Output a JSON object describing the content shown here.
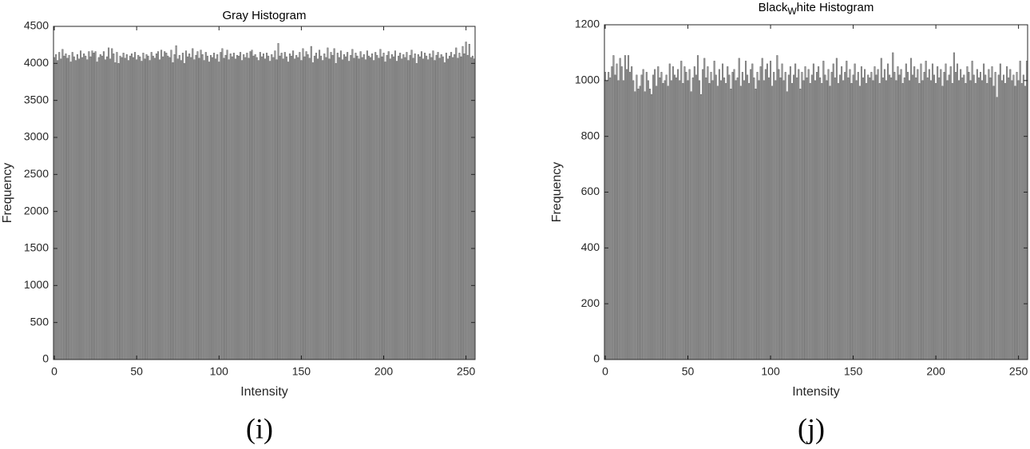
{
  "chart_data": [
    {
      "type": "bar",
      "title": "Gray Histogram",
      "xlabel": "Intensity",
      "ylabel": "Frequency",
      "caption": "(i)",
      "color": "#999999",
      "xlim": [
        -0.5,
        255.5
      ],
      "xticks": [
        0,
        50,
        100,
        150,
        200,
        250
      ],
      "ylim": [
        0,
        4500
      ],
      "yticks": [
        0,
        500,
        1000,
        1500,
        2000,
        2500,
        3000,
        3500,
        4000,
        4500
      ],
      "x": [
        0,
        1,
        2,
        3,
        4,
        5,
        6,
        7,
        8,
        9,
        10,
        11,
        12,
        13,
        14,
        15,
        16,
        17,
        18,
        19,
        20,
        21,
        22,
        23,
        24,
        25,
        26,
        27,
        28,
        29,
        30,
        31,
        32,
        33,
        34,
        35,
        36,
        37,
        38,
        39,
        40,
        41,
        42,
        43,
        44,
        45,
        46,
        47,
        48,
        49,
        50,
        51,
        52,
        53,
        54,
        55,
        56,
        57,
        58,
        59,
        60,
        61,
        62,
        63,
        64,
        65,
        66,
        67,
        68,
        69,
        70,
        71,
        72,
        73,
        74,
        75,
        76,
        77,
        78,
        79,
        80,
        81,
        82,
        83,
        84,
        85,
        86,
        87,
        88,
        89,
        90,
        91,
        92,
        93,
        94,
        95,
        96,
        97,
        98,
        99,
        100,
        101,
        102,
        103,
        104,
        105,
        106,
        107,
        108,
        109,
        110,
        111,
        112,
        113,
        114,
        115,
        116,
        117,
        118,
        119,
        120,
        121,
        122,
        123,
        124,
        125,
        126,
        127,
        128,
        129,
        130,
        131,
        132,
        133,
        134,
        135,
        136,
        137,
        138,
        139,
        140,
        141,
        142,
        143,
        144,
        145,
        146,
        147,
        148,
        149,
        150,
        151,
        152,
        153,
        154,
        155,
        156,
        157,
        158,
        159,
        160,
        161,
        162,
        163,
        164,
        165,
        166,
        167,
        168,
        169,
        170,
        171,
        172,
        173,
        174,
        175,
        176,
        177,
        178,
        179,
        180,
        181,
        182,
        183,
        184,
        185,
        186,
        187,
        188,
        189,
        190,
        191,
        192,
        193,
        194,
        195,
        196,
        197,
        198,
        199,
        200,
        201,
        202,
        203,
        204,
        205,
        206,
        207,
        208,
        209,
        210,
        211,
        212,
        213,
        214,
        215,
        216,
        217,
        218,
        219,
        220,
        221,
        222,
        223,
        224,
        225,
        226,
        227,
        228,
        229,
        230,
        231,
        232,
        233,
        234,
        235,
        236,
        237,
        238,
        239,
        240,
        241,
        242,
        243,
        244,
        245,
        246,
        247,
        248,
        249,
        250,
        251,
        252,
        253,
        254,
        255
      ],
      "values": [
        4080,
        4120,
        4040,
        4150,
        4060,
        4190,
        4100,
        4130,
        4070,
        4110,
        4020,
        4150,
        4090,
        4040,
        4120,
        4060,
        4170,
        4080,
        4130,
        4100,
        4050,
        4160,
        4090,
        4170,
        4140,
        4160,
        4020,
        4080,
        4120,
        4100,
        4160,
        4050,
        4090,
        4210,
        4060,
        4200,
        4130,
        4010,
        4150,
        4000,
        4100,
        4080,
        4140,
        4070,
        4120,
        4040,
        4100,
        4130,
        4080,
        4150,
        4050,
        4110,
        4090,
        4030,
        4140,
        4060,
        4120,
        4100,
        4040,
        4150,
        4100,
        4070,
        4130,
        4160,
        4050,
        4180,
        4090,
        4160,
        4140,
        4100,
        4080,
        4180,
        4010,
        4120,
        4240,
        4060,
        4110,
        4040,
        4140,
        4000,
        4170,
        4090,
        4130,
        4080,
        4200,
        4050,
        4110,
        4160,
        4070,
        4180,
        4120,
        4040,
        4150,
        4100,
        4020,
        4110,
        4080,
        4140,
        4060,
        4120,
        4020,
        4150,
        4200,
        4070,
        4110,
        4180,
        4050,
        4130,
        4090,
        4140,
        4060,
        4110,
        4100,
        4150,
        4040,
        4120,
        4080,
        4140,
        4070,
        4160,
        4180,
        4100,
        4120,
        4080,
        4040,
        4150,
        4090,
        4130,
        4060,
        4140,
        4100,
        4030,
        4120,
        4080,
        4170,
        4050,
        4270,
        4100,
        4140,
        4060,
        4150,
        4090,
        4020,
        4130,
        4100,
        4170,
        4060,
        4110,
        4080,
        4150,
        4040,
        4200,
        4090,
        4160,
        4120,
        4070,
        4230,
        4010,
        4100,
        4140,
        4060,
        4180,
        4100,
        4040,
        4130,
        4080,
        4210,
        4060,
        4150,
        4110,
        4200,
        4000,
        4140,
        4080,
        4170,
        4050,
        4120,
        4090,
        4150,
        4030,
        4110,
        4190,
        4070,
        4140,
        4100,
        4060,
        4160,
        4080,
        4120,
        4050,
        4170,
        4100,
        4080,
        4130,
        4040,
        4150,
        4110,
        4070,
        4190,
        4090,
        4140,
        4020,
        4110,
        4160,
        4060,
        4120,
        4090,
        4170,
        4030,
        4100,
        4140,
        4060,
        4120,
        4080,
        4150,
        4040,
        4110,
        4180,
        4070,
        4130,
        4000,
        4120,
        4090,
        4160,
        4060,
        4140,
        4100,
        4050,
        4130,
        4080,
        4170,
        4040,
        4110,
        4150,
        4070,
        4120,
        4090,
        4010,
        4140,
        4060,
        4100,
        4150,
        4080,
        4120,
        4210,
        4070,
        4140,
        4090,
        4230,
        4130,
        4290,
        4110,
        4260,
        4080,
        4100,
        4060
      ]
    },
    {
      "type": "bar",
      "title": [
        "Black",
        "W",
        "hite Histogram"
      ],
      "xlabel": "Intensity",
      "ylabel": "Frequency",
      "caption": "(j)",
      "color": "#999999",
      "xlim": [
        -0.5,
        255.5
      ],
      "xticks": [
        0,
        50,
        100,
        150,
        200,
        250
      ],
      "ylim": [
        0,
        1200
      ],
      "yticks": [
        0,
        200,
        400,
        600,
        800,
        1000,
        1200
      ],
      "x": [
        0,
        1,
        2,
        3,
        4,
        5,
        6,
        7,
        8,
        9,
        10,
        11,
        12,
        13,
        14,
        15,
        16,
        17,
        18,
        19,
        20,
        21,
        22,
        23,
        24,
        25,
        26,
        27,
        28,
        29,
        30,
        31,
        32,
        33,
        34,
        35,
        36,
        37,
        38,
        39,
        40,
        41,
        42,
        43,
        44,
        45,
        46,
        47,
        48,
        49,
        50,
        51,
        52,
        53,
        54,
        55,
        56,
        57,
        58,
        59,
        60,
        61,
        62,
        63,
        64,
        65,
        66,
        67,
        68,
        69,
        70,
        71,
        72,
        73,
        74,
        75,
        76,
        77,
        78,
        79,
        80,
        81,
        82,
        83,
        84,
        85,
        86,
        87,
        88,
        89,
        90,
        91,
        92,
        93,
        94,
        95,
        96,
        97,
        98,
        99,
        100,
        101,
        102,
        103,
        104,
        105,
        106,
        107,
        108,
        109,
        110,
        111,
        112,
        113,
        114,
        115,
        116,
        117,
        118,
        119,
        120,
        121,
        122,
        123,
        124,
        125,
        126,
        127,
        128,
        129,
        130,
        131,
        132,
        133,
        134,
        135,
        136,
        137,
        138,
        139,
        140,
        141,
        142,
        143,
        144,
        145,
        146,
        147,
        148,
        149,
        150,
        151,
        152,
        153,
        154,
        155,
        156,
        157,
        158,
        159,
        160,
        161,
        162,
        163,
        164,
        165,
        166,
        167,
        168,
        169,
        170,
        171,
        172,
        173,
        174,
        175,
        176,
        177,
        178,
        179,
        180,
        181,
        182,
        183,
        184,
        185,
        186,
        187,
        188,
        189,
        190,
        191,
        192,
        193,
        194,
        195,
        196,
        197,
        198,
        199,
        200,
        201,
        202,
        203,
        204,
        205,
        206,
        207,
        208,
        209,
        210,
        211,
        212,
        213,
        214,
        215,
        216,
        217,
        218,
        219,
        220,
        221,
        222,
        223,
        224,
        225,
        226,
        227,
        228,
        229,
        230,
        231,
        232,
        233,
        234,
        235,
        236,
        237,
        238,
        239,
        240,
        241,
        242,
        243,
        244,
        245,
        246,
        247,
        248,
        249,
        250,
        251,
        252,
        253,
        254,
        255
      ],
      "values": [
        1030,
        1000,
        1030,
        1010,
        1050,
        1090,
        1020,
        1060,
        1000,
        1080,
        1050,
        1000,
        1090,
        1040,
        1090,
        1030,
        1050,
        1000,
        960,
        1020,
        970,
        980,
        1020,
        1040,
        960,
        1030,
        1000,
        970,
        950,
        1020,
        1040,
        980,
        1050,
        1010,
        1030,
        990,
        1000,
        1020,
        980,
        1060,
        1000,
        1050,
        1020,
        1010,
        1040,
        1000,
        1070,
        990,
        1050,
        1030,
        1000,
        1040,
        960,
        1010,
        1050,
        1020,
        1090,
        1000,
        950,
        1040,
        1080,
        1010,
        1050,
        990,
        1030,
        1000,
        1070,
        1020,
        980,
        1040,
        1000,
        1060,
        1010,
        990,
        1050,
        1020,
        970,
        1030,
        1040,
        1000,
        1010,
        1080,
        980,
        1030,
        1000,
        1070,
        1020,
        990,
        1040,
        1060,
        1010,
        970,
        1030,
        1000,
        1050,
        1080,
        1000,
        1040,
        1060,
        1010,
        1070,
        980,
        1030,
        1000,
        1090,
        1040,
        1010,
        1060,
        1000,
        1030,
        960,
        1020,
        1050,
        990,
        1020,
        1060,
        1010,
        1040,
        970,
        1030,
        1000,
        1050,
        1010,
        1040,
        990,
        1020,
        1060,
        1000,
        1030,
        1050,
        1010,
        990,
        1070,
        1020,
        1000,
        1040,
        980,
        1030,
        1060,
        1010,
        1080,
        990,
        1020,
        1050,
        1000,
        1030,
        1070,
        1010,
        1040,
        990,
        1020,
        1060,
        1000,
        1030,
        980,
        1050,
        1010,
        1040,
        990,
        1020,
        1010,
        1030,
        1000,
        1050,
        1020,
        1040,
        990,
        1080,
        1010,
        1040,
        1000,
        1060,
        1020,
        1010,
        1100,
        1030,
        1000,
        1050,
        1020,
        1040,
        990,
        1010,
        1060,
        1030,
        1000,
        1080,
        1020,
        1050,
        1010,
        1040,
        990,
        1060,
        1000,
        1030,
        1070,
        1010,
        1040,
        1000,
        1060,
        1020,
        990,
        1050,
        1010,
        1040,
        980,
        1030,
        1060,
        1000,
        1020,
        1050,
        990,
        1100,
        1030,
        1060,
        1000,
        1040,
        1010,
        1020,
        990,
        1050,
        1030,
        1000,
        1070,
        1020,
        990,
        1040,
        1010,
        1030,
        1000,
        1060,
        1020,
        990,
        1040,
        1010,
        1050,
        980,
        1030,
        940,
        1020,
        1060,
        1000,
        1020,
        990,
        1050,
        1010,
        1040,
        1000,
        1020,
        980,
        1030,
        1000,
        1070,
        990,
        1020,
        980,
        1070
      ]
    }
  ]
}
